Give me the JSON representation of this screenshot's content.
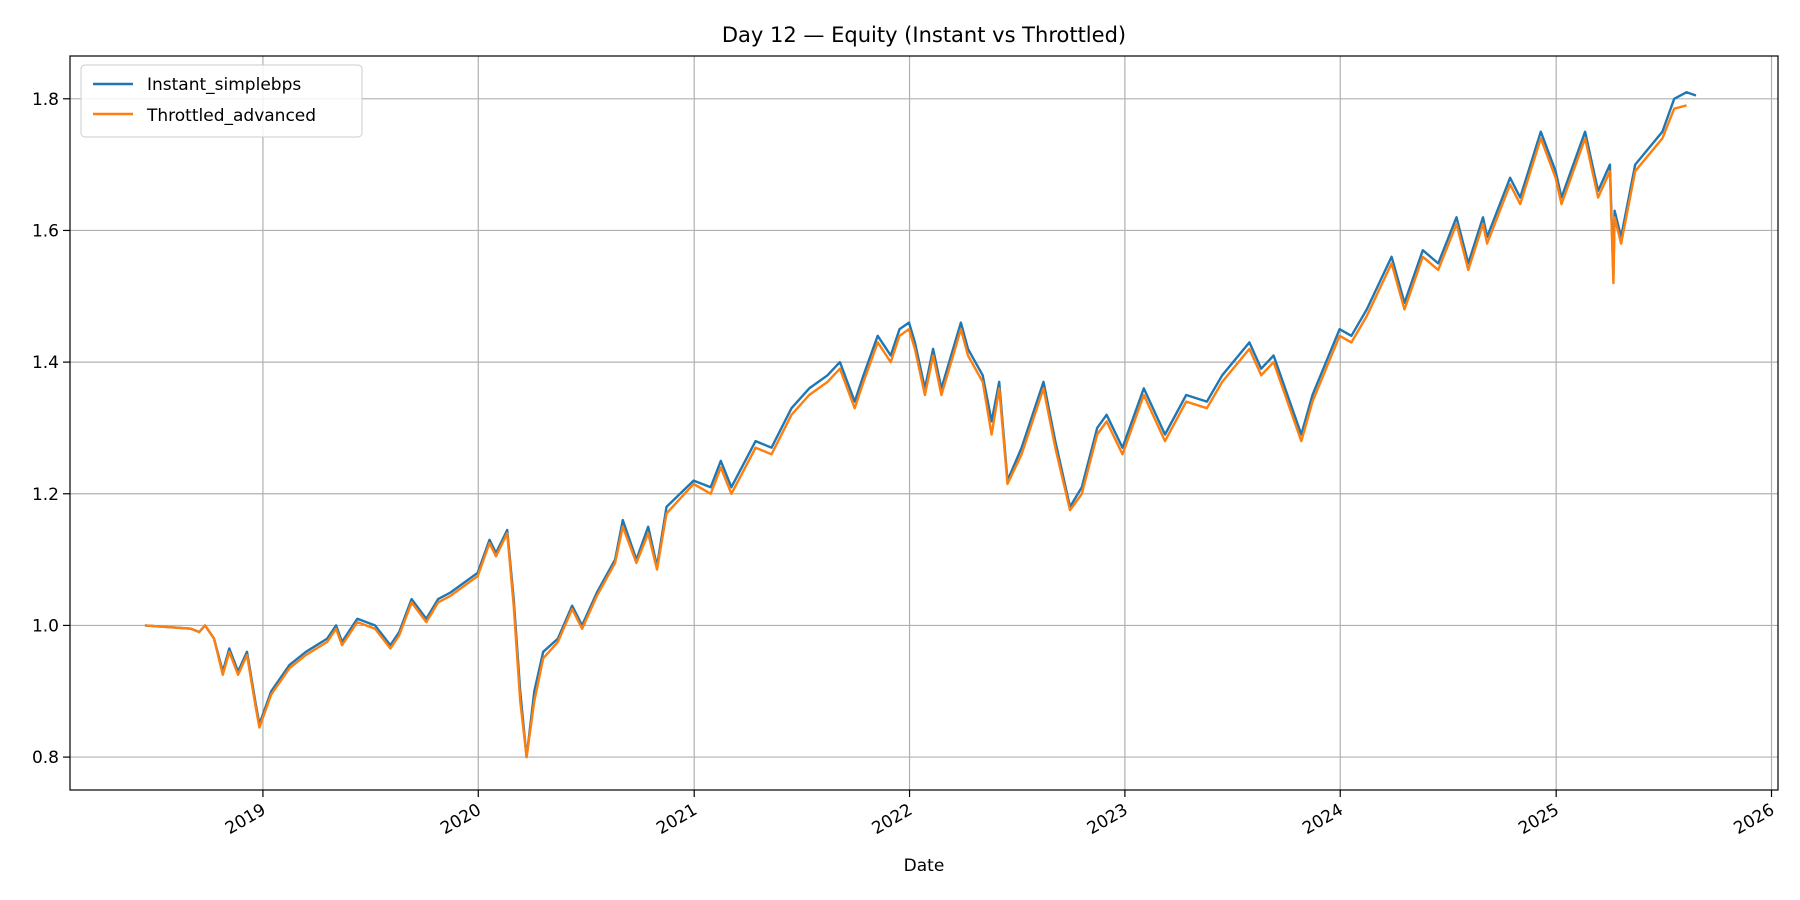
{
  "chart_data": {
    "type": "line",
    "title": "Day 12 — Equity (Instant vs Throttled)",
    "xlabel": "Date",
    "ylabel": "",
    "x_ticks": [
      "2019",
      "2020",
      "2021",
      "2022",
      "2023",
      "2024",
      "2025",
      "2026"
    ],
    "y_ticks": [
      "0.8",
      "1.0",
      "1.2",
      "1.4",
      "1.6",
      "1.8"
    ],
    "xlim": [
      "2018-02-08",
      "2026-01-12"
    ],
    "ylim": [
      0.75,
      1.865
    ],
    "grid": true,
    "legend": "top-left",
    "colors": {
      "Instant_simplebps": "#1f77b4",
      "Throttled_advanced": "#ff7f0e"
    },
    "series": [
      {
        "name": "Instant_simplebps",
        "points": [
          [
            "2018-06-15",
            1.0
          ],
          [
            "2018-09-01",
            0.995
          ],
          [
            "2018-09-15",
            0.99
          ],
          [
            "2018-09-25",
            1.0
          ],
          [
            "2018-10-10",
            0.98
          ],
          [
            "2018-10-25",
            0.93
          ],
          [
            "2018-11-05",
            0.965
          ],
          [
            "2018-11-20",
            0.93
          ],
          [
            "2018-12-05",
            0.96
          ],
          [
            "2018-12-20",
            0.88
          ],
          [
            "2018-12-26",
            0.85
          ],
          [
            "2019-01-15",
            0.9
          ],
          [
            "2019-02-15",
            0.94
          ],
          [
            "2019-03-15",
            0.96
          ],
          [
            "2019-04-20",
            0.98
          ],
          [
            "2019-05-05",
            1.0
          ],
          [
            "2019-05-15",
            0.975
          ],
          [
            "2019-06-10",
            1.01
          ],
          [
            "2019-07-10",
            1.0
          ],
          [
            "2019-08-05",
            0.97
          ],
          [
            "2019-08-20",
            0.99
          ],
          [
            "2019-09-10",
            1.04
          ],
          [
            "2019-10-05",
            1.01
          ],
          [
            "2019-10-25",
            1.04
          ],
          [
            "2019-11-15",
            1.05
          ],
          [
            "2019-12-31",
            1.08
          ],
          [
            "2020-01-20",
            1.13
          ],
          [
            "2020-01-31",
            1.11
          ],
          [
            "2020-02-19",
            1.145
          ],
          [
            "2020-03-01",
            1.04
          ],
          [
            "2020-03-12",
            0.9
          ],
          [
            "2020-03-23",
            0.8
          ],
          [
            "2020-04-05",
            0.9
          ],
          [
            "2020-04-20",
            0.96
          ],
          [
            "2020-05-15",
            0.98
          ],
          [
            "2020-06-08",
            1.03
          ],
          [
            "2020-06-25",
            1.0
          ],
          [
            "2020-07-20",
            1.05
          ],
          [
            "2020-08-20",
            1.1
          ],
          [
            "2020-09-02",
            1.16
          ],
          [
            "2020-09-25",
            1.1
          ],
          [
            "2020-10-15",
            1.15
          ],
          [
            "2020-10-30",
            1.09
          ],
          [
            "2020-11-15",
            1.18
          ],
          [
            "2020-12-31",
            1.22
          ],
          [
            "2021-01-29",
            1.21
          ],
          [
            "2021-02-15",
            1.25
          ],
          [
            "2021-03-05",
            1.21
          ],
          [
            "2021-04-15",
            1.28
          ],
          [
            "2021-05-12",
            1.27
          ],
          [
            "2021-06-15",
            1.33
          ],
          [
            "2021-07-15",
            1.36
          ],
          [
            "2021-08-15",
            1.38
          ],
          [
            "2021-09-05",
            1.4
          ],
          [
            "2021-09-30",
            1.34
          ],
          [
            "2021-10-15",
            1.38
          ],
          [
            "2021-11-08",
            1.44
          ],
          [
            "2021-11-30",
            1.41
          ],
          [
            "2021-12-15",
            1.45
          ],
          [
            "2021-12-31",
            1.46
          ],
          [
            "2022-01-10",
            1.43
          ],
          [
            "2022-01-27",
            1.36
          ],
          [
            "2022-02-10",
            1.42
          ],
          [
            "2022-02-24",
            1.36
          ],
          [
            "2022-03-29",
            1.46
          ],
          [
            "2022-04-10",
            1.42
          ],
          [
            "2022-05-05",
            1.38
          ],
          [
            "2022-05-20",
            1.31
          ],
          [
            "2022-06-02",
            1.37
          ],
          [
            "2022-06-16",
            1.22
          ],
          [
            "2022-07-10",
            1.27
          ],
          [
            "2022-08-16",
            1.37
          ],
          [
            "2022-09-05",
            1.28
          ],
          [
            "2022-09-30",
            1.18
          ],
          [
            "2022-10-20",
            1.21
          ],
          [
            "2022-11-15",
            1.3
          ],
          [
            "2022-12-01",
            1.32
          ],
          [
            "2022-12-28",
            1.27
          ],
          [
            "2023-02-02",
            1.36
          ],
          [
            "2023-03-10",
            1.29
          ],
          [
            "2023-04-15",
            1.35
          ],
          [
            "2023-05-20",
            1.34
          ],
          [
            "2023-06-15",
            1.38
          ],
          [
            "2023-07-31",
            1.43
          ],
          [
            "2023-08-20",
            1.39
          ],
          [
            "2023-09-10",
            1.41
          ],
          [
            "2023-10-27",
            1.29
          ],
          [
            "2023-11-15",
            1.35
          ],
          [
            "2023-12-31",
            1.45
          ],
          [
            "2024-01-20",
            1.44
          ],
          [
            "2024-02-15",
            1.48
          ],
          [
            "2024-03-28",
            1.56
          ],
          [
            "2024-04-19",
            1.49
          ],
          [
            "2024-05-20",
            1.57
          ],
          [
            "2024-06-15",
            1.55
          ],
          [
            "2024-07-16",
            1.62
          ],
          [
            "2024-08-05",
            1.55
          ],
          [
            "2024-08-30",
            1.62
          ],
          [
            "2024-09-06",
            1.59
          ],
          [
            "2024-10-15",
            1.68
          ],
          [
            "2024-11-01",
            1.65
          ],
          [
            "2024-12-06",
            1.75
          ],
          [
            "2024-12-31",
            1.69
          ],
          [
            "2025-01-10",
            1.65
          ],
          [
            "2025-02-19",
            1.75
          ],
          [
            "2025-03-13",
            1.66
          ],
          [
            "2025-04-02",
            1.7
          ],
          [
            "2025-04-08",
            1.53
          ],
          [
            "2025-04-10",
            1.63
          ],
          [
            "2025-04-21",
            1.59
          ],
          [
            "2025-05-15",
            1.7
          ],
          [
            "2025-06-30",
            1.75
          ],
          [
            "2025-07-20",
            1.8
          ],
          [
            "2025-08-10",
            1.81
          ],
          [
            "2025-08-26",
            1.805
          ]
        ]
      },
      {
        "name": "Throttled_advanced",
        "points": [
          [
            "2018-06-15",
            1.0
          ],
          [
            "2018-09-01",
            0.995
          ],
          [
            "2018-09-15",
            0.99
          ],
          [
            "2018-09-25",
            1.0
          ],
          [
            "2018-10-10",
            0.98
          ],
          [
            "2018-10-25",
            0.925
          ],
          [
            "2018-11-05",
            0.96
          ],
          [
            "2018-11-20",
            0.925
          ],
          [
            "2018-12-05",
            0.955
          ],
          [
            "2018-12-20",
            0.875
          ],
          [
            "2018-12-26",
            0.845
          ],
          [
            "2019-01-15",
            0.895
          ],
          [
            "2019-02-15",
            0.935
          ],
          [
            "2019-03-15",
            0.955
          ],
          [
            "2019-04-20",
            0.975
          ],
          [
            "2019-05-05",
            0.995
          ],
          [
            "2019-05-15",
            0.97
          ],
          [
            "2019-06-10",
            1.005
          ],
          [
            "2019-07-10",
            0.995
          ],
          [
            "2019-08-05",
            0.965
          ],
          [
            "2019-08-20",
            0.985
          ],
          [
            "2019-09-10",
            1.035
          ],
          [
            "2019-10-05",
            1.005
          ],
          [
            "2019-10-25",
            1.035
          ],
          [
            "2019-11-15",
            1.045
          ],
          [
            "2019-12-31",
            1.075
          ],
          [
            "2020-01-20",
            1.125
          ],
          [
            "2020-01-31",
            1.105
          ],
          [
            "2020-02-19",
            1.14
          ],
          [
            "2020-03-01",
            1.03
          ],
          [
            "2020-03-12",
            0.885
          ],
          [
            "2020-03-23",
            0.8
          ],
          [
            "2020-04-05",
            0.885
          ],
          [
            "2020-04-20",
            0.95
          ],
          [
            "2020-05-15",
            0.975
          ],
          [
            "2020-06-08",
            1.025
          ],
          [
            "2020-06-25",
            0.995
          ],
          [
            "2020-07-20",
            1.045
          ],
          [
            "2020-08-20",
            1.095
          ],
          [
            "2020-09-02",
            1.15
          ],
          [
            "2020-09-25",
            1.095
          ],
          [
            "2020-10-15",
            1.14
          ],
          [
            "2020-10-30",
            1.085
          ],
          [
            "2020-11-15",
            1.17
          ],
          [
            "2020-12-31",
            1.215
          ],
          [
            "2021-01-29",
            1.2
          ],
          [
            "2021-02-15",
            1.24
          ],
          [
            "2021-03-05",
            1.2
          ],
          [
            "2021-04-15",
            1.27
          ],
          [
            "2021-05-12",
            1.26
          ],
          [
            "2021-06-15",
            1.32
          ],
          [
            "2021-07-15",
            1.35
          ],
          [
            "2021-08-15",
            1.37
          ],
          [
            "2021-09-05",
            1.39
          ],
          [
            "2021-09-30",
            1.33
          ],
          [
            "2021-10-15",
            1.37
          ],
          [
            "2021-11-08",
            1.43
          ],
          [
            "2021-11-30",
            1.4
          ],
          [
            "2021-12-15",
            1.44
          ],
          [
            "2021-12-31",
            1.45
          ],
          [
            "2022-01-10",
            1.42
          ],
          [
            "2022-01-27",
            1.35
          ],
          [
            "2022-02-10",
            1.41
          ],
          [
            "2022-02-24",
            1.35
          ],
          [
            "2022-03-29",
            1.45
          ],
          [
            "2022-04-10",
            1.41
          ],
          [
            "2022-05-05",
            1.37
          ],
          [
            "2022-05-20",
            1.29
          ],
          [
            "2022-06-02",
            1.36
          ],
          [
            "2022-06-16",
            1.215
          ],
          [
            "2022-07-10",
            1.26
          ],
          [
            "2022-08-16",
            1.36
          ],
          [
            "2022-09-05",
            1.27
          ],
          [
            "2022-09-30",
            1.175
          ],
          [
            "2022-10-20",
            1.2
          ],
          [
            "2022-11-15",
            1.29
          ],
          [
            "2022-12-01",
            1.31
          ],
          [
            "2022-12-28",
            1.26
          ],
          [
            "2023-02-02",
            1.35
          ],
          [
            "2023-03-10",
            1.28
          ],
          [
            "2023-04-15",
            1.34
          ],
          [
            "2023-05-20",
            1.33
          ],
          [
            "2023-06-15",
            1.37
          ],
          [
            "2023-07-31",
            1.42
          ],
          [
            "2023-08-20",
            1.38
          ],
          [
            "2023-09-10",
            1.4
          ],
          [
            "2023-10-27",
            1.28
          ],
          [
            "2023-11-15",
            1.34
          ],
          [
            "2023-12-31",
            1.44
          ],
          [
            "2024-01-20",
            1.43
          ],
          [
            "2024-02-15",
            1.47
          ],
          [
            "2024-03-28",
            1.55
          ],
          [
            "2024-04-19",
            1.48
          ],
          [
            "2024-05-20",
            1.56
          ],
          [
            "2024-06-15",
            1.54
          ],
          [
            "2024-07-16",
            1.61
          ],
          [
            "2024-08-05",
            1.54
          ],
          [
            "2024-08-30",
            1.61
          ],
          [
            "2024-09-06",
            1.58
          ],
          [
            "2024-10-15",
            1.67
          ],
          [
            "2024-11-01",
            1.64
          ],
          [
            "2024-12-06",
            1.74
          ],
          [
            "2024-12-31",
            1.68
          ],
          [
            "2025-01-10",
            1.64
          ],
          [
            "2025-02-19",
            1.74
          ],
          [
            "2025-03-13",
            1.65
          ],
          [
            "2025-04-02",
            1.69
          ],
          [
            "2025-04-08",
            1.52
          ],
          [
            "2025-04-10",
            1.62
          ],
          [
            "2025-04-21",
            1.58
          ],
          [
            "2025-05-15",
            1.69
          ],
          [
            "2025-06-30",
            1.74
          ],
          [
            "2025-07-20",
            1.785
          ],
          [
            "2025-08-10",
            1.79
          ]
        ]
      }
    ]
  }
}
